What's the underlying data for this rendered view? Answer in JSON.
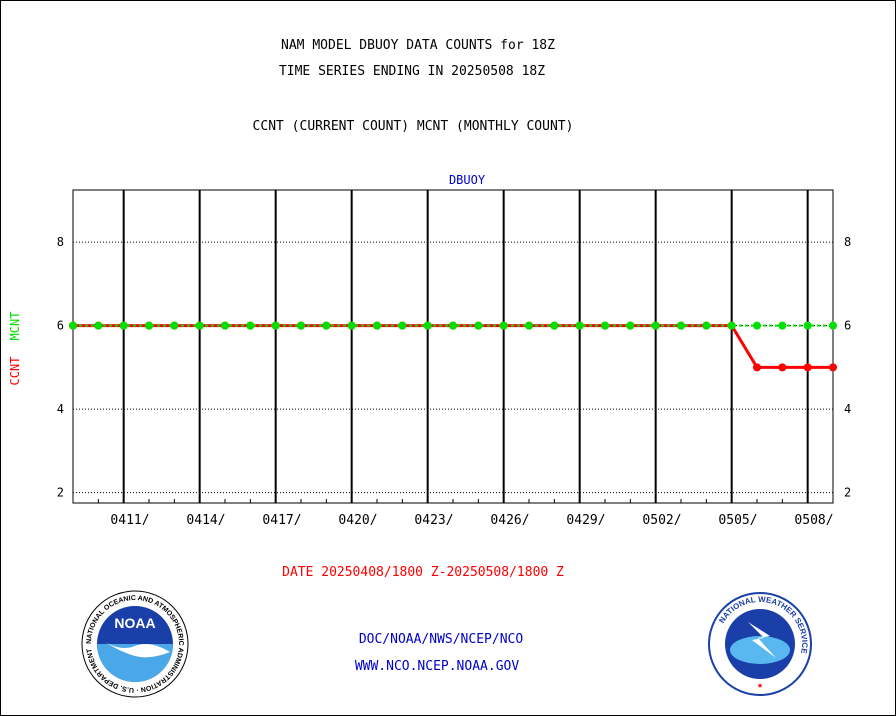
{
  "header": {
    "title_line1": "NAM MODEL DBUOY DATA COUNTS for 18Z",
    "title_line2": "TIME SERIES ENDING IN 20250508 18Z",
    "subtitle": "CCNT (CURRENT COUNT) MCNT (MONTHLY COUNT)"
  },
  "footer": {
    "date_range": "DATE 20250408/1800 Z-20250508/1800 Z",
    "line1": "DOC/NOAA/NWS/NCEP/NCO",
    "line2": "WWW.NCO.NCEP.NOAA.GOV"
  },
  "logos": {
    "noaa": "NOAA",
    "noaa_ring": "NATIONAL OCEANIC AND ATMOSPHERIC ADMINISTRATION · U.S. DEPARTMENT OF COMMERCE ·",
    "nws_ring": "NATIONAL WEATHER SERVICE"
  },
  "colors": {
    "ccnt": "#ff0000",
    "mcnt": "#00e000",
    "panel_label": "#0000cc",
    "footer_text": "#0000cc",
    "date_text": "#ff0000"
  },
  "chart_data": {
    "type": "line",
    "panel_title": "DBUOY",
    "ylabel_ccnt": "CCNT",
    "ylabel_mcnt": "MCNT",
    "ylim": [
      1.75,
      9.25
    ],
    "yticks": [
      2,
      4,
      6,
      8
    ],
    "xlim": [
      0,
      30
    ],
    "x_tick_labels": [
      "0411/",
      "0414/",
      "0417/",
      "0420/",
      "0423/",
      "0426/",
      "0429/",
      "0502/",
      "0505/",
      "0508/"
    ],
    "x_tick_positions": [
      2.25,
      5.25,
      8.25,
      11.25,
      14.25,
      17.25,
      20.25,
      23.25,
      26.25,
      29.25
    ],
    "grid": true,
    "series": [
      {
        "name": "CCNT",
        "x": [
          0,
          1,
          2,
          3,
          4,
          5,
          6,
          7,
          8,
          9,
          10,
          11,
          12,
          13,
          14,
          15,
          16,
          17,
          18,
          19,
          20,
          21,
          22,
          23,
          24,
          25,
          26,
          27,
          28,
          29,
          30
        ],
        "values": [
          6,
          6,
          6,
          6,
          6,
          6,
          6,
          6,
          6,
          6,
          6,
          6,
          6,
          6,
          6,
          6,
          6,
          6,
          6,
          6,
          6,
          6,
          6,
          6,
          6,
          6,
          6,
          5,
          5,
          5,
          5
        ]
      },
      {
        "name": "MCNT",
        "x": [
          0,
          1,
          2,
          3,
          4,
          5,
          6,
          7,
          8,
          9,
          10,
          11,
          12,
          13,
          14,
          15,
          16,
          17,
          18,
          19,
          20,
          21,
          22,
          23,
          24,
          25,
          26,
          27,
          28,
          29,
          30
        ],
        "values": [
          6,
          6,
          6,
          6,
          6,
          6,
          6,
          6,
          6,
          6,
          6,
          6,
          6,
          6,
          6,
          6,
          6,
          6,
          6,
          6,
          6,
          6,
          6,
          6,
          6,
          6,
          6,
          6,
          6,
          6,
          6
        ]
      }
    ]
  }
}
